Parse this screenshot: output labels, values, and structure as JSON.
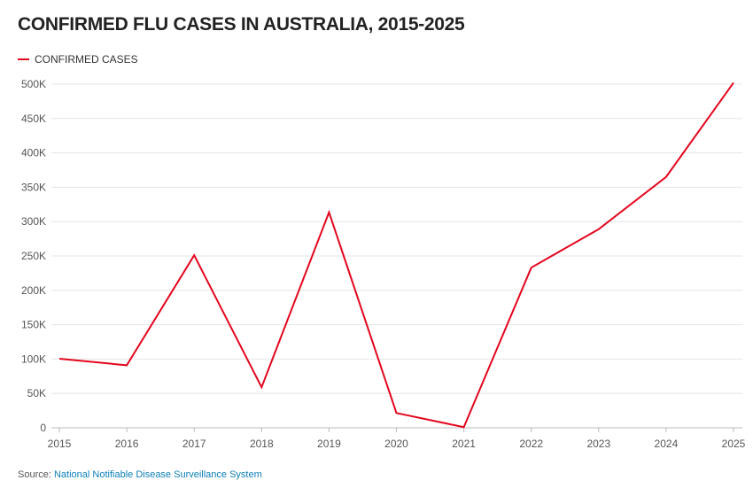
{
  "title": "CONFIRMED FLU CASES IN AUSTRALIA, 2015-2025",
  "legend_label": "CONFIRMED CASES",
  "source": {
    "prefix": "Source:",
    "link_text": "National Notifiable Disease Surveillance System"
  },
  "colors": {
    "series": "#e3061e",
    "grid": "#e6e6e6",
    "axis": "#bbbbbb",
    "link": "#0d7fb8"
  },
  "chart_data": {
    "type": "line",
    "x": [
      "2015",
      "2016",
      "2017",
      "2018",
      "2019",
      "2020",
      "2021",
      "2022",
      "2023",
      "2024",
      "2025"
    ],
    "series": [
      {
        "name": "CONFIRMED CASES",
        "values": [
          100500,
          91000,
          251000,
          59000,
          313500,
          21500,
          1000,
          233000,
          289000,
          365000,
          502000
        ]
      }
    ],
    "yticks": [
      0,
      50000,
      100000,
      150000,
      200000,
      250000,
      300000,
      350000,
      400000,
      450000,
      500000
    ],
    "ytick_labels": [
      "0",
      "50K",
      "100K",
      "150K",
      "200K",
      "250K",
      "300K",
      "350K",
      "400K",
      "450K",
      "500K"
    ],
    "ylim": [
      0,
      500000
    ],
    "grid": true,
    "legend_position": "top-left",
    "title": "CONFIRMED FLU CASES IN AUSTRALIA, 2015-2025",
    "xlabel": "",
    "ylabel": ""
  }
}
